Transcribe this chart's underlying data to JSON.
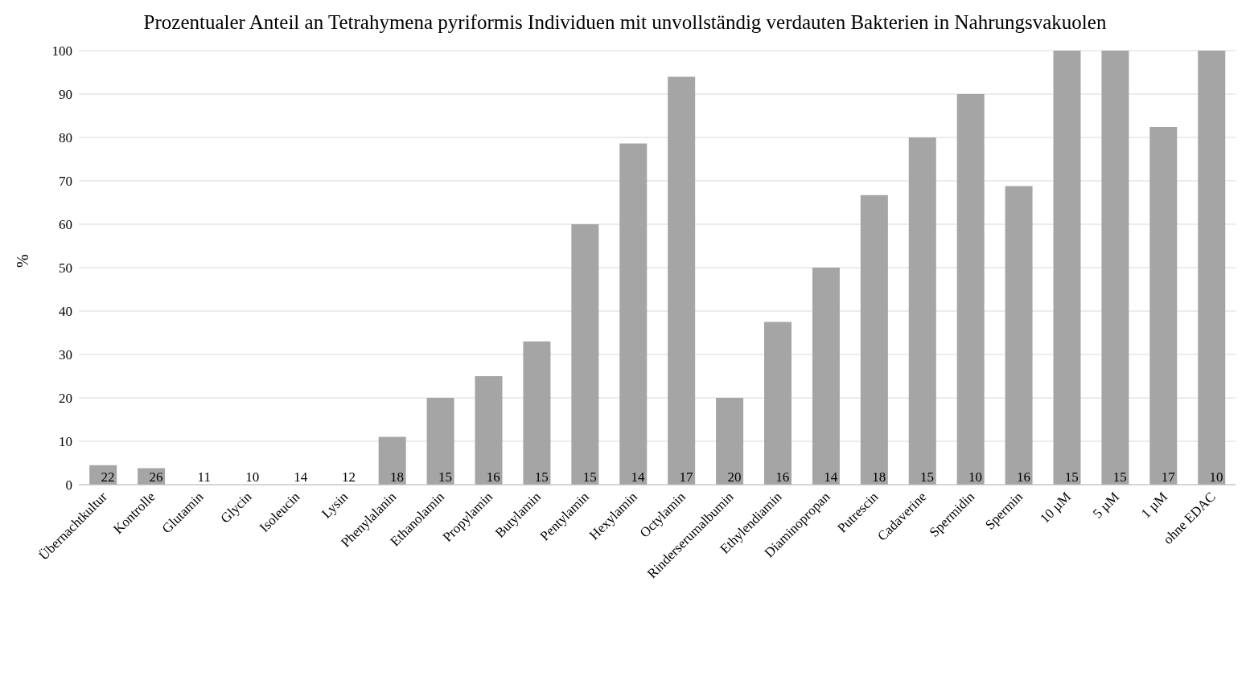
{
  "chart_data": {
    "type": "bar",
    "title": "Prozentualer Anteil an Tetrahymena pyriformis Individuen mit unvollständig  verdauten Bakterien in Nahrungsvakuolen",
    "ylabel": "%",
    "categories": [
      "Übernachtkultur",
      "Kontrolle",
      "Glutamin",
      "Glycin",
      "Isoleucin",
      "Lysin",
      "Phenylalanin",
      "Ethanolamin",
      "Propylamin",
      "Butylamin",
      "Pentylamin",
      "Hexylamin",
      "Octylamin",
      "Rinderserumalbumin",
      "Ethylendiamin",
      "Diaminopropan",
      "Putrescin",
      "Cadaverine",
      "Spermidin",
      "Spermin",
      "10 µM",
      "5 µM",
      "1 µM",
      "ohne EDAC"
    ],
    "values": [
      4.5,
      3.8,
      0,
      0,
      0,
      0,
      11,
      20,
      25,
      33,
      60,
      78.6,
      94,
      20,
      37.5,
      50,
      66.7,
      80,
      90,
      68.8,
      100,
      100,
      82.4,
      100
    ],
    "color": "#a5a5a5",
    "ylim": [
      0,
      100
    ],
    "yticks": [
      0,
      10,
      20,
      30,
      40,
      50,
      60,
      70,
      80,
      90,
      100
    ],
    "grid": "y",
    "annotations": [
      {
        "text": "22",
        "x": "Übernachtkultur",
        "y": 0
      },
      {
        "text": "26",
        "x": "Kontrolle",
        "y": 0
      },
      {
        "text": "11",
        "x": "Glutamin",
        "y": 0
      },
      {
        "text": "10",
        "x": "Glycin",
        "y": 0
      },
      {
        "text": "14",
        "x": "Isoleucin",
        "y": 0
      },
      {
        "text": "12",
        "x": "Lysin",
        "y": 0
      },
      {
        "text": "18",
        "x": "Phenylalanin",
        "y": 0
      },
      {
        "text": "15",
        "x": "Ethanolamin",
        "y": 0
      },
      {
        "text": "16",
        "x": "Propylamin",
        "y": 0
      },
      {
        "text": "15",
        "x": "Butylamin",
        "y": 0
      },
      {
        "text": "15",
        "x": "Pentylamin",
        "y": 0
      },
      {
        "text": "14",
        "x": "Hexylamin",
        "y": 0
      },
      {
        "text": "17",
        "x": "Octylamin",
        "y": 0
      },
      {
        "text": "20",
        "x": "Rinderserumalbumin",
        "y": 0
      },
      {
        "text": "16",
        "x": "Ethylendiamin",
        "y": 0
      },
      {
        "text": "14",
        "x": "Diaminopropan",
        "y": 0
      },
      {
        "text": "18",
        "x": "Putrescin",
        "y": 0
      },
      {
        "text": "15",
        "x": "Cadaverine",
        "y": 0
      },
      {
        "text": "10",
        "x": "Spermidin",
        "y": 0
      },
      {
        "text": "16",
        "x": "Spermin",
        "y": 0
      },
      {
        "text": "15",
        "x": "10 µM",
        "y": 0
      },
      {
        "text": "15",
        "x": "5 µM",
        "y": 0
      },
      {
        "text": "17",
        "x": "1 µM",
        "y": 0
      },
      {
        "text": "10",
        "x": "ohne EDAC",
        "y": 0
      }
    ]
  }
}
